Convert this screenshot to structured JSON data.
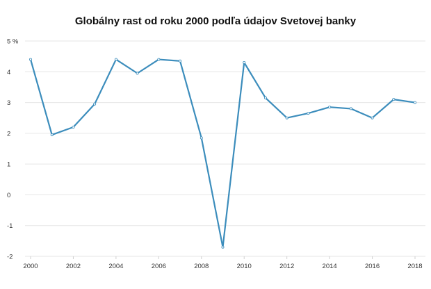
{
  "chart_data": {
    "type": "line",
    "title": "Globálny rast od roku 2000 podľa údajov Svetovej banky",
    "xlabel": "",
    "ylabel": "",
    "x": [
      2000,
      2001,
      2002,
      2003,
      2004,
      2005,
      2006,
      2007,
      2008,
      2009,
      2010,
      2011,
      2012,
      2013,
      2014,
      2015,
      2016,
      2017,
      2018
    ],
    "series": [
      {
        "values": [
          4.4,
          1.95,
          2.2,
          2.95,
          4.4,
          3.95,
          4.4,
          4.35,
          1.85,
          -1.7,
          4.3,
          3.15,
          2.5,
          2.65,
          2.85,
          2.8,
          2.5,
          3.1,
          3.0
        ]
      }
    ],
    "xlim": [
      2000,
      2018
    ],
    "ylim": [
      -2,
      5
    ],
    "x_ticks": [
      "2000",
      "2002",
      "2004",
      "2006",
      "2008",
      "2010",
      "2012",
      "2014",
      "2016",
      "2018"
    ],
    "y_ticks": [
      "5 %",
      "4",
      "3",
      "2",
      "1",
      "0",
      "-1",
      "-2"
    ],
    "grid": "horizontal",
    "line_color": "#3c8dbc"
  }
}
